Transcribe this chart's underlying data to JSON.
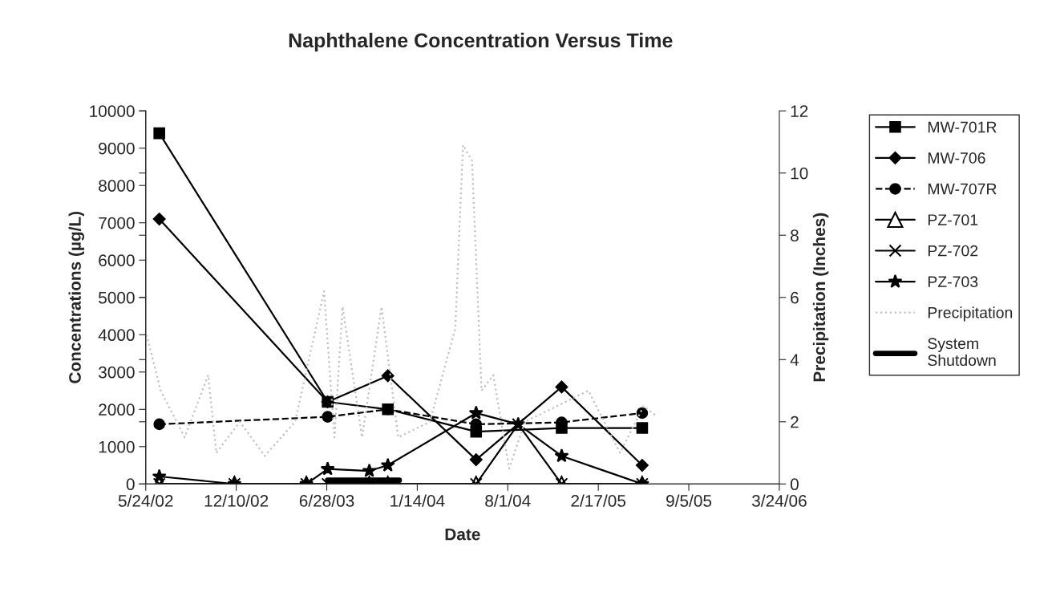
{
  "chart_data": {
    "type": "line",
    "title": "Naphthalene Concentration Versus Time",
    "xlabel": "Date",
    "ylabel": "Concentrations (µg/L)",
    "y2label": "Precipitation (Inches)",
    "xlim": [
      "2002-05-24",
      "2006-03-24"
    ],
    "xticks": [
      {
        "value": "2002-05-24",
        "label": "5/24/02"
      },
      {
        "value": "2002-12-10",
        "label": "12/10/02"
      },
      {
        "value": "2003-06-28",
        "label": "6/28/03"
      },
      {
        "value": "2004-01-14",
        "label": "1/14/04"
      },
      {
        "value": "2004-08-01",
        "label": "8/1/04"
      },
      {
        "value": "2005-02-17",
        "label": "2/17/05"
      },
      {
        "value": "2005-09-05",
        "label": "9/5/05"
      },
      {
        "value": "2006-03-24",
        "label": "3/24/06"
      }
    ],
    "ylim": [
      0,
      10000
    ],
    "yticks": [
      0,
      1000,
      2000,
      3000,
      4000,
      5000,
      6000,
      7000,
      8000,
      9000,
      10000
    ],
    "y2lim": [
      0,
      12
    ],
    "y2ticks": [
      0,
      2,
      4,
      6,
      8,
      10,
      12
    ],
    "grid": false,
    "legend": "right",
    "line_style": "solid",
    "series": [
      {
        "name": "MW-701R",
        "color": "#000000",
        "marker": "square",
        "x": [
          "2002-06-23",
          "2003-06-30",
          "2003-11-10",
          "2004-05-23",
          "2004-11-28",
          "2005-05-25"
        ],
        "values": [
          9400,
          2200,
          2000,
          1400,
          1500,
          1500
        ]
      },
      {
        "name": "MW-706",
        "color": "#000000",
        "marker": "diamond",
        "x": [
          "2002-06-23",
          "2003-06-30",
          "2003-11-10",
          "2004-05-23",
          "2004-11-28",
          "2005-05-25"
        ],
        "values": [
          7100,
          2200,
          2900,
          650,
          2600,
          500
        ]
      },
      {
        "name": "MW-707R",
        "color": "#000000",
        "marker": "circle",
        "line_style": "dashed",
        "x": [
          "2002-06-23",
          "2003-06-30",
          "2003-11-10",
          "2004-05-23",
          "2004-11-28",
          "2005-05-25"
        ],
        "values": [
          1600,
          1800,
          2000,
          1600,
          1650,
          1900
        ]
      },
      {
        "name": "PZ-701",
        "color": "#000000",
        "marker": "triangle",
        "x": [
          "2002-06-23",
          "2002-12-06",
          "2003-05-14",
          "2003-09-30",
          "2003-11-10",
          "2004-05-23",
          "2004-11-28",
          "2005-05-25"
        ],
        "values": [
          0,
          0,
          0,
          0,
          0,
          0,
          0,
          0
        ]
      },
      {
        "name": "PZ-702",
        "color": "#000000",
        "marker": "cross",
        "x": [
          "2002-06-23",
          "2002-12-06",
          "2003-05-14",
          "2003-06-30",
          "2003-09-30",
          "2003-11-10",
          "2004-05-23",
          "2004-08-24",
          "2004-11-28",
          "2005-05-25"
        ],
        "values": [
          0,
          0,
          0,
          0,
          0,
          0,
          0,
          1600,
          0,
          0
        ]
      },
      {
        "name": "PZ-703",
        "color": "#000000",
        "marker": "star",
        "x": [
          "2002-06-23",
          "2002-12-06",
          "2003-05-14",
          "2003-06-30",
          "2003-09-30",
          "2003-11-10",
          "2004-05-23",
          "2004-08-24",
          "2004-11-28",
          "2005-05-25"
        ],
        "values": [
          200,
          0,
          0,
          400,
          350,
          500,
          1900,
          1600,
          750,
          0
        ]
      },
      {
        "name": "Precipitation",
        "color": "#c0c0c0",
        "marker": "none",
        "line_style": "dotted",
        "axis": "y2",
        "x": [
          "2002-05-26",
          "2002-06-26",
          "2002-08-18",
          "2002-10-09",
          "2002-10-27",
          "2002-12-18",
          "2003-02-11",
          "2003-04-19",
          "2003-06-22",
          "2003-07-15",
          "2003-08-02",
          "2003-09-14",
          "2003-10-27",
          "2003-12-03",
          "2004-02-11",
          "2004-04-07",
          "2004-04-24",
          "2004-05-14",
          "2004-06-04",
          "2004-06-30",
          "2004-08-04",
          "2004-09-08",
          "2004-11-17",
          "2005-01-26",
          "2005-04-06",
          "2005-05-28",
          "2005-06-24"
        ],
        "values": [
          4.8,
          3.0,
          1.5,
          3.5,
          1.0,
          2.0,
          0.9,
          2.0,
          6.2,
          1.5,
          5.7,
          1.5,
          5.7,
          1.5,
          2.0,
          5.0,
          10.9,
          10.4,
          3.0,
          3.5,
          0.5,
          2.0,
          2.5,
          3.0,
          1.0,
          2.5,
          2.2
        ]
      },
      {
        "name": "System Shutdown",
        "color": "#000000",
        "marker": "none",
        "x": [
          "2003-06-30",
          "2003-12-05"
        ],
        "values": [
          100,
          100
        ]
      }
    ]
  }
}
